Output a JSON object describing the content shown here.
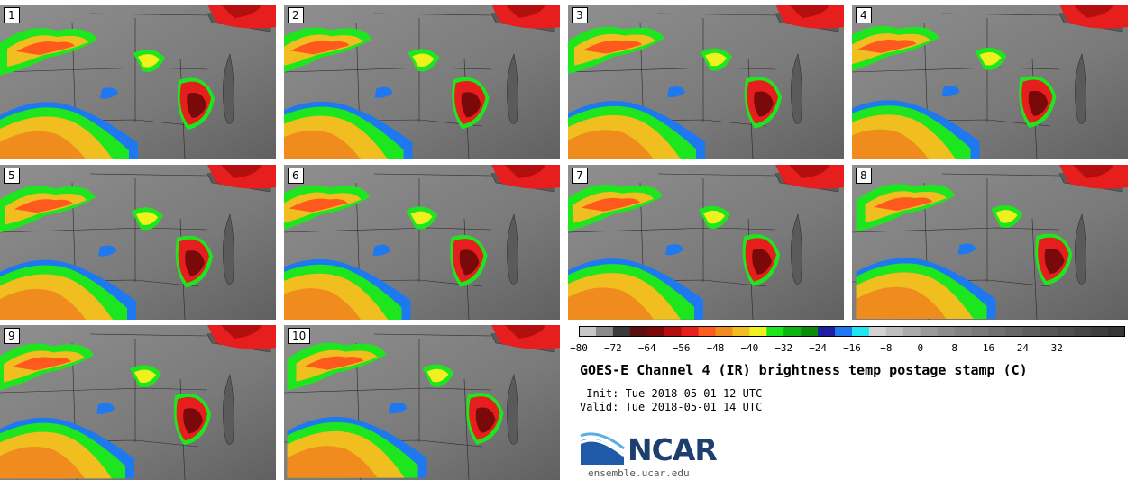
{
  "panels": [
    {
      "label": "1"
    },
    {
      "label": "2"
    },
    {
      "label": "3"
    },
    {
      "label": "4"
    },
    {
      "label": "5"
    },
    {
      "label": "6"
    },
    {
      "label": "7"
    },
    {
      "label": "8"
    },
    {
      "label": "9"
    },
    {
      "label": "10"
    }
  ],
  "colorbar": {
    "colors": [
      "#c8c8c8",
      "#8a8a8a",
      "#3a3a3a",
      "#5a1010",
      "#7a0a0a",
      "#b40f0f",
      "#e61e1e",
      "#ff5a1e",
      "#f08c1e",
      "#f0be1e",
      "#f0f01e",
      "#1ee61e",
      "#10b410",
      "#0a8c0a",
      "#1e1ea0",
      "#1e78f0",
      "#1ee6f0",
      "#d2d2d2",
      "#bebebe",
      "#aaaaaa",
      "#9a9a9a",
      "#8c8c8c",
      "#828282",
      "#787878",
      "#707070",
      "#666666",
      "#5e5e5e",
      "#565656",
      "#4e4e4e",
      "#464646",
      "#3e3e3e",
      "#363636"
    ],
    "ticks": [
      "−80",
      "−72",
      "−64",
      "−56",
      "−48",
      "−40",
      "−32",
      "−24",
      "−16",
      "−8",
      "0",
      "8",
      "16",
      "24",
      "32"
    ]
  },
  "title": "GOES-E Channel 4 (IR) brightness temp postage stamp (C)",
  "init": " Init: Tue 2018-05-01 12 UTC",
  "valid": "Valid: Tue 2018-05-01 14 UTC",
  "logo": {
    "text": "NCAR",
    "url": "ensemble.ucar.edu"
  }
}
